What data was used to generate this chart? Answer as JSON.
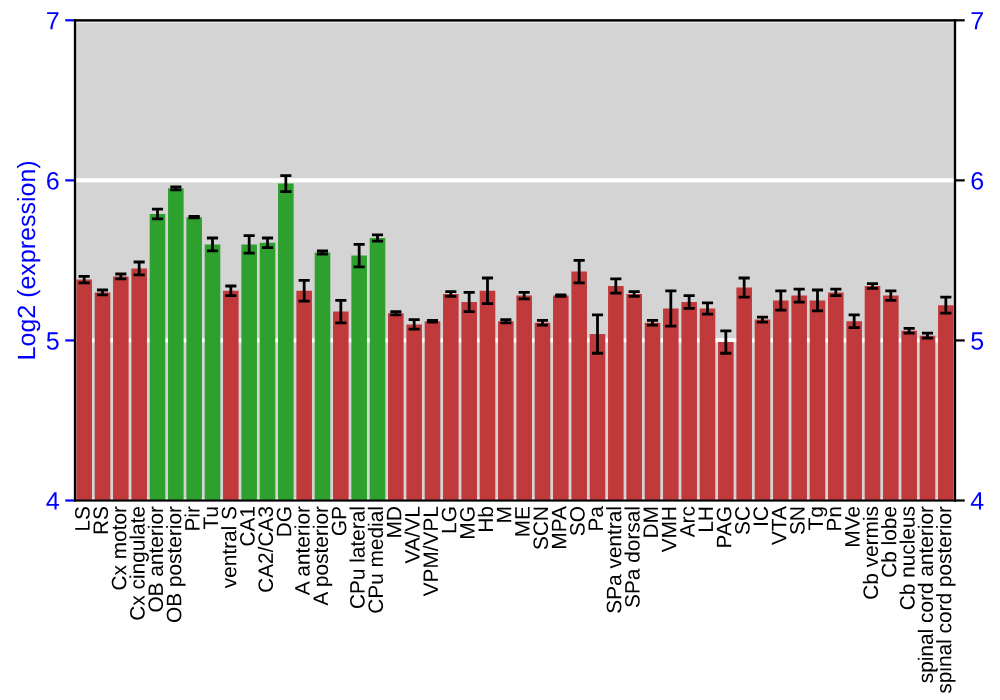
{
  "chart_data": {
    "type": "bar",
    "ylabel": "Log2 (expression)",
    "categories": [
      "LS",
      "RS",
      "Cx motor",
      "Cx cingulate",
      "OB anterior",
      "OB posterior",
      "Pir",
      "Tu",
      "ventral S",
      "CA1",
      "CA2/CA3",
      "DG",
      "A anterior",
      "A posterior",
      "GP",
      "CPu lateral",
      "CPu medial",
      "MD",
      "VA/VL",
      "VPM/VPL",
      "LG",
      "MG",
      "Hb",
      "M",
      "ME",
      "SCN",
      "MPA",
      "SO",
      "Pa",
      "SPa ventral",
      "SPa dorsal",
      "DM",
      "VMH",
      "Arc",
      "LH",
      "PAG",
      "SC",
      "IC",
      "VTA",
      "SN",
      "Tg",
      "Pn",
      "MVe",
      "Cb vermis",
      "Cb lobe",
      "Cb nucleus",
      "spinal cord anterior",
      "spinal cord posterior"
    ],
    "values": [
      5.38,
      5.3,
      5.4,
      5.45,
      5.79,
      5.95,
      5.77,
      5.6,
      5.31,
      5.6,
      5.61,
      5.98,
      5.31,
      5.55,
      5.18,
      5.53,
      5.64,
      5.17,
      5.1,
      5.12,
      5.29,
      5.24,
      5.31,
      5.12,
      5.28,
      5.11,
      5.28,
      5.43,
      5.04,
      5.34,
      5.29,
      5.11,
      5.2,
      5.24,
      5.2,
      4.99,
      5.33,
      5.13,
      5.25,
      5.28,
      5.25,
      5.3,
      5.12,
      5.34,
      5.28,
      5.06,
      5.03,
      5.22
    ],
    "errors": [
      0.02,
      0.015,
      0.015,
      0.04,
      0.03,
      0.01,
      0.005,
      0.04,
      0.03,
      0.055,
      0.03,
      0.05,
      0.065,
      0.01,
      0.07,
      0.07,
      0.02,
      0.01,
      0.03,
      0.005,
      0.015,
      0.06,
      0.08,
      0.01,
      0.02,
      0.015,
      0.005,
      0.07,
      0.12,
      0.045,
      0.015,
      0.015,
      0.11,
      0.04,
      0.035,
      0.07,
      0.06,
      0.015,
      0.06,
      0.04,
      0.065,
      0.02,
      0.04,
      0.015,
      0.03,
      0.015,
      0.015,
      0.05
    ],
    "colors": [
      "#c0393b",
      "#c0393b",
      "#c0393b",
      "#c0393b",
      "#2ea02e",
      "#2ea02e",
      "#2ea02e",
      "#2ea02e",
      "#c0393b",
      "#2ea02e",
      "#2ea02e",
      "#2ea02e",
      "#c0393b",
      "#2ea02e",
      "#c0393b",
      "#2ea02e",
      "#2ea02e",
      "#c0393b",
      "#c0393b",
      "#c0393b",
      "#c0393b",
      "#c0393b",
      "#c0393b",
      "#c0393b",
      "#c0393b",
      "#c0393b",
      "#c0393b",
      "#c0393b",
      "#c0393b",
      "#c0393b",
      "#c0393b",
      "#c0393b",
      "#c0393b",
      "#c0393b",
      "#c0393b",
      "#c0393b",
      "#c0393b",
      "#c0393b",
      "#c0393b",
      "#c0393b",
      "#c0393b",
      "#c0393b",
      "#c0393b",
      "#c0393b",
      "#c0393b",
      "#c0393b",
      "#c0393b",
      "#c0393b"
    ],
    "ylim": [
      4,
      7
    ],
    "yticks": [
      4,
      5,
      6,
      7
    ],
    "y2lim": [
      4,
      7
    ],
    "y2ticks": [
      4,
      5,
      6,
      7
    ],
    "grid": "y"
  }
}
